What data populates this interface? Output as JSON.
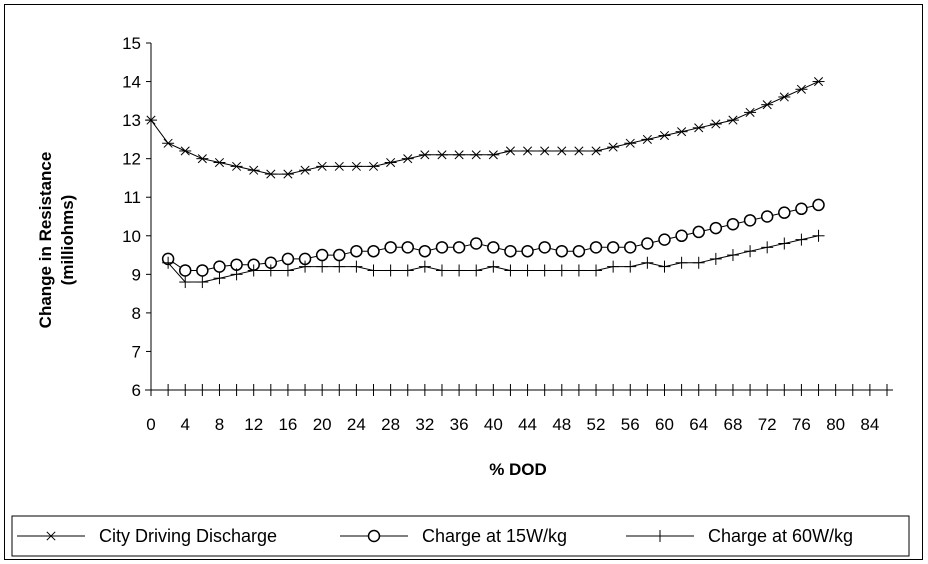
{
  "chart_data": {
    "type": "line",
    "title": "",
    "xlabel": "% DOD",
    "ylabel_line1": "Change in Resistance",
    "ylabel_line2": "(milliohms)",
    "xlim": [
      0,
      86
    ],
    "ylim": [
      6,
      15
    ],
    "x_ticks": [
      0,
      4,
      8,
      12,
      16,
      20,
      24,
      28,
      32,
      36,
      40,
      44,
      48,
      52,
      56,
      60,
      64,
      68,
      72,
      76,
      80,
      84
    ],
    "y_ticks": [
      6,
      7,
      8,
      9,
      10,
      11,
      12,
      13,
      14,
      15
    ],
    "legend_position": "bottom",
    "grid": false,
    "colors": {
      "line": "#000000",
      "background": "#ffffff"
    },
    "series": [
      {
        "name": "City Driving Discharge",
        "marker": "asterisk",
        "x": [
          0,
          2,
          4,
          6,
          8,
          10,
          12,
          14,
          16,
          18,
          20,
          22,
          24,
          26,
          28,
          30,
          32,
          34,
          36,
          38,
          40,
          42,
          44,
          46,
          48,
          50,
          52,
          54,
          56,
          58,
          60,
          62,
          64,
          66,
          68,
          70,
          72,
          74,
          76,
          78
        ],
        "y": [
          13.0,
          12.4,
          12.2,
          12.0,
          11.9,
          11.8,
          11.7,
          11.6,
          11.6,
          11.7,
          11.8,
          11.8,
          11.8,
          11.8,
          11.9,
          12.0,
          12.1,
          12.1,
          12.1,
          12.1,
          12.1,
          12.2,
          12.2,
          12.2,
          12.2,
          12.2,
          12.2,
          12.3,
          12.4,
          12.5,
          12.6,
          12.7,
          12.8,
          12.9,
          13.0,
          13.2,
          13.4,
          13.6,
          13.8,
          14.0
        ]
      },
      {
        "name": "Charge at 15W/kg",
        "marker": "circle",
        "x": [
          2,
          4,
          6,
          8,
          10,
          12,
          14,
          16,
          18,
          20,
          22,
          24,
          26,
          28,
          30,
          32,
          34,
          36,
          38,
          40,
          42,
          44,
          46,
          48,
          50,
          52,
          54,
          56,
          58,
          60,
          62,
          64,
          66,
          68,
          70,
          72,
          74,
          76,
          78
        ],
        "y": [
          9.4,
          9.1,
          9.1,
          9.2,
          9.25,
          9.25,
          9.3,
          9.4,
          9.4,
          9.5,
          9.5,
          9.6,
          9.6,
          9.7,
          9.7,
          9.6,
          9.7,
          9.7,
          9.8,
          9.7,
          9.6,
          9.6,
          9.7,
          9.6,
          9.6,
          9.7,
          9.7,
          9.7,
          9.8,
          9.9,
          10.0,
          10.1,
          10.2,
          10.3,
          10.4,
          10.5,
          10.6,
          10.7,
          10.8
        ]
      },
      {
        "name": "Charge at 60W/kg",
        "marker": "plus",
        "x": [
          2,
          4,
          6,
          8,
          10,
          12,
          14,
          16,
          18,
          20,
          22,
          24,
          26,
          28,
          30,
          32,
          34,
          36,
          38,
          40,
          42,
          44,
          46,
          48,
          50,
          52,
          54,
          56,
          58,
          60,
          62,
          64,
          66,
          68,
          70,
          72,
          74,
          76,
          78
        ],
        "y": [
          9.3,
          8.8,
          8.8,
          8.9,
          9.0,
          9.1,
          9.1,
          9.1,
          9.2,
          9.2,
          9.2,
          9.2,
          9.1,
          9.1,
          9.1,
          9.2,
          9.1,
          9.1,
          9.1,
          9.2,
          9.1,
          9.1,
          9.1,
          9.1,
          9.1,
          9.1,
          9.2,
          9.2,
          9.3,
          9.2,
          9.3,
          9.3,
          9.4,
          9.5,
          9.6,
          9.7,
          9.8,
          9.9,
          10.0
        ]
      },
      {
        "name": "",
        "marker": "plus",
        "x": [
          0,
          2,
          4,
          6,
          8,
          10,
          12,
          14,
          16,
          18,
          20,
          22,
          24,
          26,
          28,
          30,
          32,
          34,
          36,
          38,
          40,
          42,
          44,
          46,
          48,
          50,
          52,
          54,
          56,
          58,
          60,
          62,
          64,
          66,
          68,
          70,
          72,
          74,
          76,
          78,
          80,
          82,
          84,
          86
        ],
        "y": [
          6,
          6,
          6,
          6,
          6,
          6,
          6,
          6,
          6,
          6,
          6,
          6,
          6,
          6,
          6,
          6,
          6,
          6,
          6,
          6,
          6,
          6,
          6,
          6,
          6,
          6,
          6,
          6,
          6,
          6,
          6,
          6,
          6,
          6,
          6,
          6,
          6,
          6,
          6,
          6,
          6,
          6,
          6,
          6
        ]
      }
    ]
  }
}
